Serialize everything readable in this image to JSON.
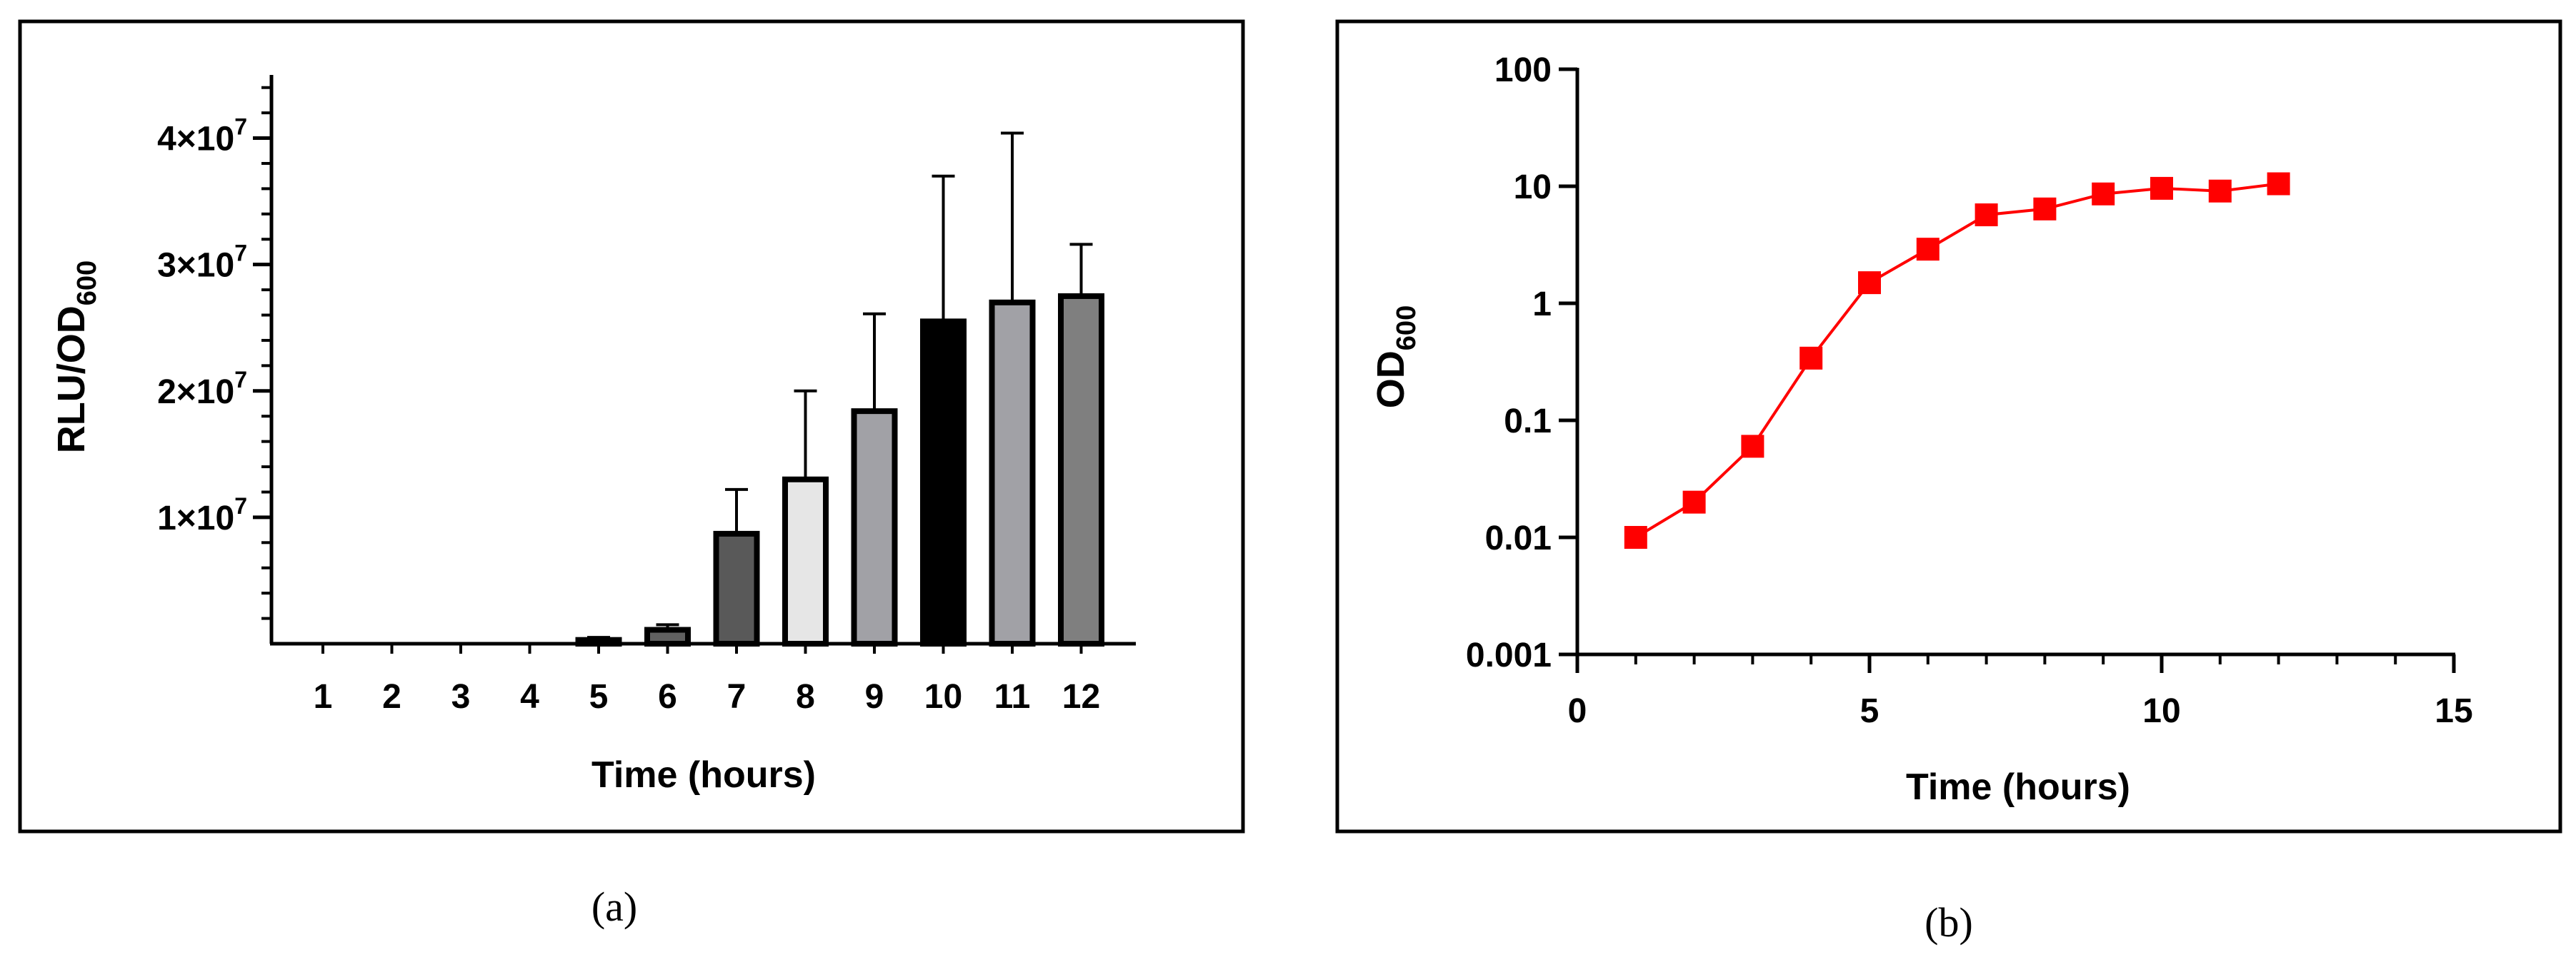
{
  "chart_data": [
    {
      "type": "bar",
      "panel_label": "(a)",
      "title": "",
      "xlabel": "Time (hours)",
      "ylabel": "RLU/OD",
      "ylabel_sub": "600",
      "categories": [
        "1",
        "2",
        "3",
        "4",
        "5",
        "6",
        "7",
        "8",
        "9",
        "10",
        "11",
        "12"
      ],
      "values": [
        0,
        0,
        0,
        0,
        300000,
        1100000,
        8700000,
        13000000,
        18400000,
        25500000,
        27000000,
        27500000
      ],
      "error_upper": [
        0,
        0,
        0,
        0,
        500000,
        1500000,
        12200000,
        20000000,
        26100000,
        37000000,
        40400000,
        31600000
      ],
      "bar_colors": [
        "#808080",
        "#808080",
        "#808080",
        "#808080",
        "#808080",
        "#606060",
        "#595959",
        "#e6e6e6",
        "#a1a1a6",
        "#000000",
        "#a1a1a6",
        "#7f7f7f"
      ],
      "ylim": [
        0,
        45000000
      ],
      "yticks": [
        {
          "value": 10000000,
          "label": "1×10",
          "exp": "7"
        },
        {
          "value": 20000000,
          "label": "2×10",
          "exp": "7"
        },
        {
          "value": 30000000,
          "label": "3×10",
          "exp": "7"
        },
        {
          "value": 40000000,
          "label": "4×10",
          "exp": "7"
        }
      ]
    },
    {
      "type": "line",
      "panel_label": "(b)",
      "title": "",
      "xlabel": "Time (hours)",
      "ylabel": "OD",
      "ylabel_sub": "600",
      "yscale": "log",
      "x": [
        1,
        2,
        3,
        4,
        5,
        6,
        7,
        8,
        9,
        10,
        11,
        12
      ],
      "y": [
        0.01,
        0.02,
        0.06,
        0.34,
        1.5,
        2.9,
        5.7,
        6.4,
        8.6,
        9.6,
        9.1,
        10.5
      ],
      "series_color": "#ff0000",
      "marker": "square",
      "xlim": [
        0,
        15
      ],
      "ylim": [
        0.001,
        100
      ],
      "xticks": [
        "0",
        "5",
        "10",
        "15"
      ],
      "yticks": [
        "0.001",
        "0.01",
        "0.1",
        "1",
        "10",
        "100"
      ]
    }
  ]
}
